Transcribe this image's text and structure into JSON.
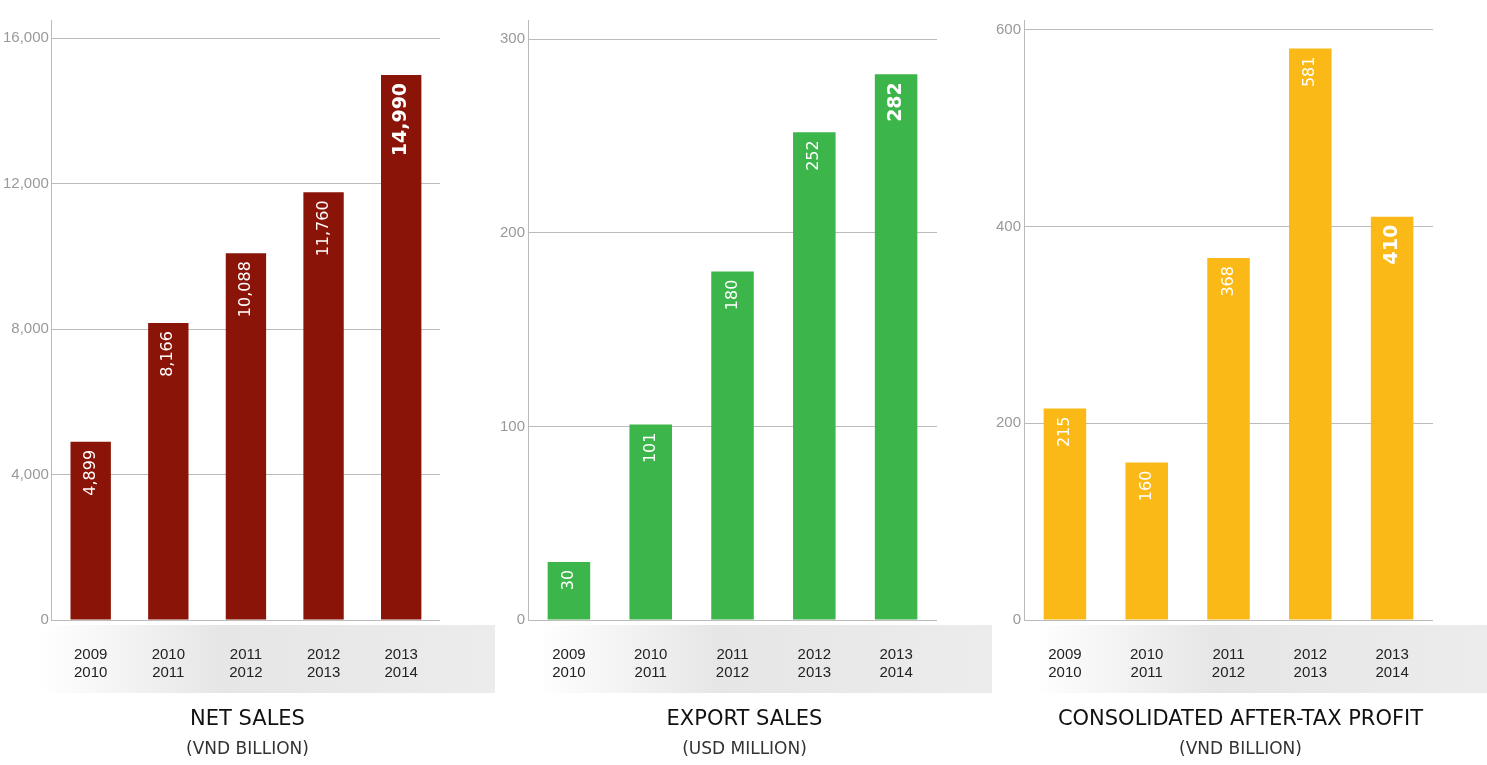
{
  "chart_data": [
    {
      "type": "bar",
      "title": "NET SALES",
      "subtitle": "(VND BILLION)",
      "categories": [
        "2009\n2010",
        "2010\n2011",
        "2011\n2012",
        "2012\n2013",
        "2013\n2014"
      ],
      "values": [
        4899,
        8166,
        10088,
        11760,
        14990
      ],
      "value_labels": [
        "4,899",
        "8,166",
        "10,088",
        "11,760",
        "14,990"
      ],
      "color": "#8b1409",
      "ylim": [
        0,
        16500
      ],
      "yticks": [
        0,
        {
          "value": 4000,
          "label": "4,000"
        },
        {
          "value": 8000,
          "label": "8,000"
        },
        {
          "value": 12000,
          "label": "12,000"
        },
        {
          "value": 16000,
          "label": "16,000"
        }
      ],
      "grid": "y"
    },
    {
      "type": "bar",
      "title": "EXPORT SALES",
      "subtitle": "(USD MILLION)",
      "categories": [
        "2009\n2010",
        "2010\n2011",
        "2011\n2012",
        "2012\n2013",
        "2013\n2014"
      ],
      "values": [
        30,
        101,
        180,
        252,
        282
      ],
      "data_labels": true,
      "color": "#3cb54a",
      "ylim": [
        0,
        310
      ],
      "yticks": [
        0,
        100,
        200,
        300
      ],
      "grid": "y"
    },
    {
      "type": "bar",
      "title": "CONSOLIDATED AFTER-TAX PROFIT",
      "subtitle": "(VND BILLION)",
      "categories": [
        "2009\n2010",
        "2010\n2011",
        "2011\n2012",
        "2012\n2013",
        "2013\n2014"
      ],
      "values": [
        215,
        160,
        368,
        581,
        410
      ],
      "data_labels": true,
      "color": "#fbb917",
      "ylim": [
        0,
        610
      ],
      "yticks": [
        0,
        200,
        400,
        600
      ],
      "grid": "y"
    }
  ]
}
